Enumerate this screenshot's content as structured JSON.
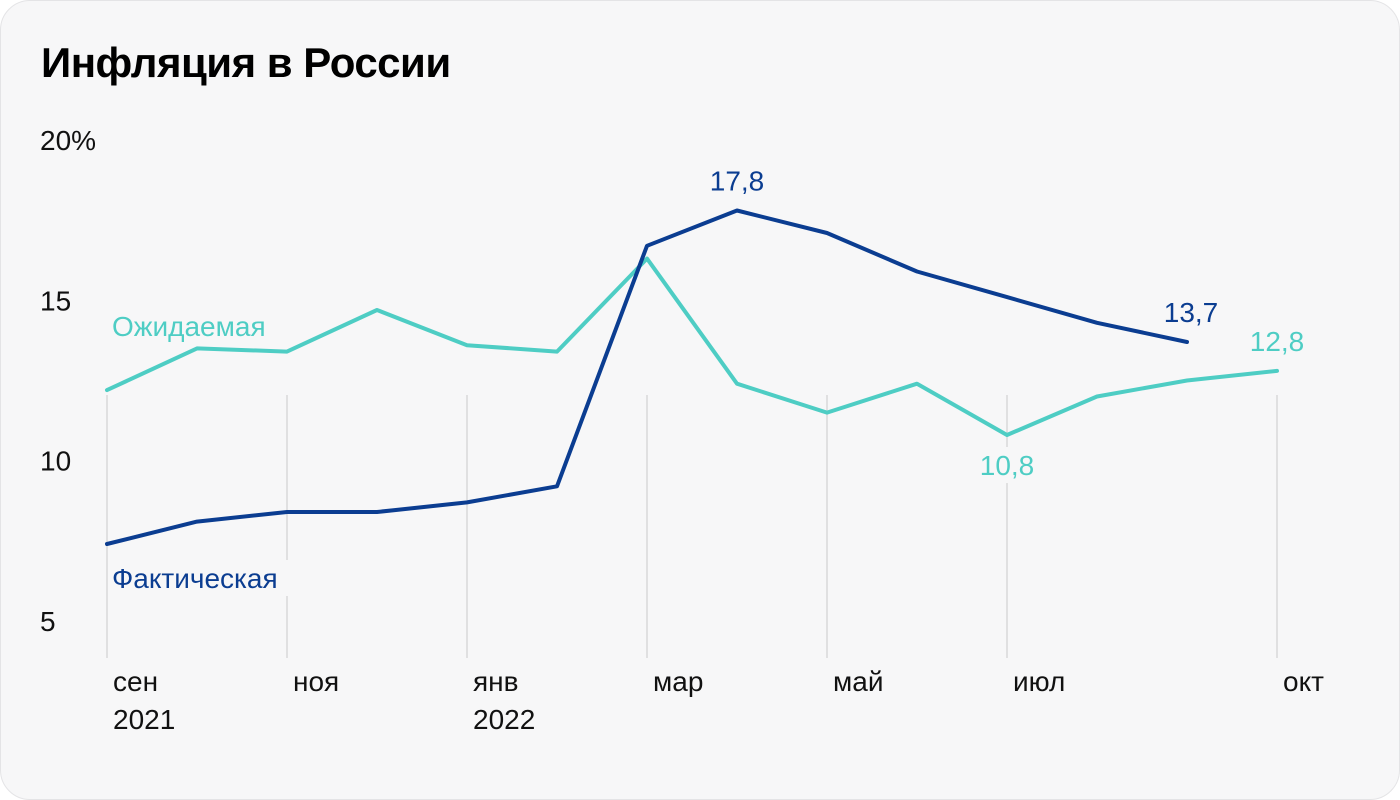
{
  "title": "Инфляция в России",
  "colors": {
    "actual": "#0b3d91",
    "expected": "#4ecdc4",
    "grid": "#d9d9d9",
    "background": "#f7f7f8"
  },
  "chart_data": {
    "type": "line",
    "title": "Инфляция в России",
    "xlabel": "",
    "ylabel": "",
    "ylim": [
      5,
      20
    ],
    "grid": "vertical",
    "y_ticks": [
      "20%",
      "15",
      "10",
      "5"
    ],
    "x_ticks": [
      {
        "month": "2021-09",
        "label": "сен",
        "sublabel": "2021"
      },
      {
        "month": "2021-11",
        "label": "ноя",
        "sublabel": ""
      },
      {
        "month": "2022-01",
        "label": "янв",
        "sublabel": "2022"
      },
      {
        "month": "2022-03",
        "label": "мар",
        "sublabel": ""
      },
      {
        "month": "2022-05",
        "label": "май",
        "sublabel": ""
      },
      {
        "month": "2022-07",
        "label": "июл",
        "sublabel": ""
      },
      {
        "month": "2022-10",
        "label": "окт",
        "sublabel": ""
      }
    ],
    "x": [
      "2021-09",
      "2021-10",
      "2021-11",
      "2021-12",
      "2022-01",
      "2022-02",
      "2022-03",
      "2022-04",
      "2022-05",
      "2022-06",
      "2022-07",
      "2022-08",
      "2022-09",
      "2022-10"
    ],
    "series": [
      {
        "name": "Фактическая",
        "key": "actual",
        "values": [
          7.4,
          8.1,
          8.4,
          8.4,
          8.7,
          9.2,
          16.7,
          17.8,
          17.1,
          15.9,
          15.1,
          14.3,
          13.7,
          null
        ]
      },
      {
        "name": "Ожидаемая",
        "key": "expected",
        "values": [
          12.2,
          13.5,
          13.4,
          14.7,
          13.6,
          13.4,
          16.3,
          12.4,
          11.5,
          12.4,
          10.8,
          12.0,
          12.5,
          12.8
        ]
      }
    ],
    "annotations": [
      {
        "series": "actual",
        "index": 7,
        "text": "17,8",
        "position": "above"
      },
      {
        "series": "actual",
        "index": 12,
        "text": "13,7",
        "position": "above"
      },
      {
        "series": "expected",
        "index": 10,
        "text": "10,8",
        "position": "below"
      },
      {
        "series": "expected",
        "index": 13,
        "text": "12,8",
        "position": "above"
      }
    ]
  }
}
